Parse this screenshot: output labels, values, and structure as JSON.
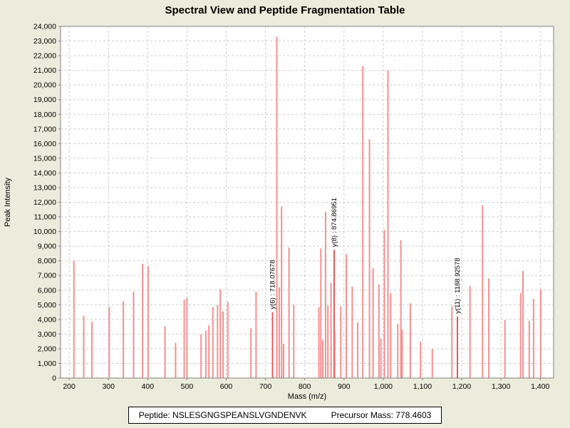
{
  "title": "Spectral View and Peptide Fragmentation Table",
  "footer": {
    "peptide": "Peptide: NSLESGNGSPEANSLVGNDENVK",
    "precursor": "Precursor Mass: 778.4603"
  },
  "chart_data": {
    "type": "bar",
    "title": "Spectral View and Peptide Fragmentation Table",
    "xlabel": "Mass (m/z)",
    "ylabel": "Peak Intensity",
    "xlim": [
      178,
      1434
    ],
    "ylim": [
      0,
      24000
    ],
    "x_ticks": [
      200,
      300,
      400,
      500,
      600,
      700,
      800,
      900,
      1000,
      1100,
      1200,
      1300,
      1400
    ],
    "y_tick_min": 0,
    "y_tick_max": 24000,
    "y_tick_step": 1000,
    "grid": true,
    "legend": "none",
    "colors": {
      "page_background": "#ECECDC",
      "plot_background": "#FFFFFF",
      "plot_border": "#808080",
      "gridline": "#CCCCCC",
      "peak": "#F29090",
      "peak_annotated": "#E05A5A",
      "text": "#000000"
    },
    "peaks": [
      {
        "mz": 212,
        "intensity": 8000
      },
      {
        "mz": 237,
        "intensity": 4250
      },
      {
        "mz": 258,
        "intensity": 3850
      },
      {
        "mz": 302,
        "intensity": 4850
      },
      {
        "mz": 338,
        "intensity": 5250
      },
      {
        "mz": 364,
        "intensity": 5900
      },
      {
        "mz": 387,
        "intensity": 7800
      },
      {
        "mz": 401,
        "intensity": 7650
      },
      {
        "mz": 444,
        "intensity": 3550
      },
      {
        "mz": 471,
        "intensity": 2400
      },
      {
        "mz": 493,
        "intensity": 5350
      },
      {
        "mz": 500,
        "intensity": 5450
      },
      {
        "mz": 536,
        "intensity": 3000
      },
      {
        "mz": 548,
        "intensity": 3250
      },
      {
        "mz": 556,
        "intensity": 3600
      },
      {
        "mz": 566,
        "intensity": 4850
      },
      {
        "mz": 578,
        "intensity": 5000
      },
      {
        "mz": 585,
        "intensity": 6050
      },
      {
        "mz": 592,
        "intensity": 4550
      },
      {
        "mz": 604,
        "intensity": 5200
      },
      {
        "mz": 663,
        "intensity": 3400
      },
      {
        "mz": 676,
        "intensity": 5900
      },
      {
        "mz": 718.08,
        "intensity": 4500,
        "annotated": true
      },
      {
        "mz": 729,
        "intensity": 23300
      },
      {
        "mz": 735,
        "intensity": 6200
      },
      {
        "mz": 741,
        "intensity": 11700
      },
      {
        "mz": 746,
        "intensity": 2350
      },
      {
        "mz": 760,
        "intensity": 8900
      },
      {
        "mz": 772,
        "intensity": 5000
      },
      {
        "mz": 836,
        "intensity": 4850
      },
      {
        "mz": 841,
        "intensity": 8850
      },
      {
        "mz": 846,
        "intensity": 2600
      },
      {
        "mz": 853,
        "intensity": 11350
      },
      {
        "mz": 859,
        "intensity": 4950
      },
      {
        "mz": 867,
        "intensity": 6500
      },
      {
        "mz": 874.87,
        "intensity": 8750,
        "annotated": true
      },
      {
        "mz": 877,
        "intensity": 3200
      },
      {
        "mz": 892,
        "intensity": 4900
      },
      {
        "mz": 906,
        "intensity": 8450
      },
      {
        "mz": 921,
        "intensity": 6250
      },
      {
        "mz": 935,
        "intensity": 3800
      },
      {
        "mz": 948,
        "intensity": 21300
      },
      {
        "mz": 965,
        "intensity": 16300
      },
      {
        "mz": 974,
        "intensity": 7500
      },
      {
        "mz": 989,
        "intensity": 6400
      },
      {
        "mz": 994,
        "intensity": 2700
      },
      {
        "mz": 1003,
        "intensity": 10100
      },
      {
        "mz": 1012,
        "intensity": 21000
      },
      {
        "mz": 1019,
        "intensity": 5800
      },
      {
        "mz": 1037,
        "intensity": 3700
      },
      {
        "mz": 1045,
        "intensity": 9400
      },
      {
        "mz": 1048,
        "intensity": 3300
      },
      {
        "mz": 1069,
        "intensity": 5100
      },
      {
        "mz": 1095,
        "intensity": 2500
      },
      {
        "mz": 1125,
        "intensity": 2000
      },
      {
        "mz": 1175,
        "intensity": 4900
      },
      {
        "mz": 1188.93,
        "intensity": 4200,
        "annotated": true
      },
      {
        "mz": 1221,
        "intensity": 6300
      },
      {
        "mz": 1253,
        "intensity": 11800
      },
      {
        "mz": 1269,
        "intensity": 6800
      },
      {
        "mz": 1310,
        "intensity": 3950
      },
      {
        "mz": 1350,
        "intensity": 5800
      },
      {
        "mz": 1356,
        "intensity": 7300
      },
      {
        "mz": 1372,
        "intensity": 3900
      },
      {
        "mz": 1383,
        "intensity": 5400
      },
      {
        "mz": 1401,
        "intensity": 6050
      }
    ],
    "annotations": [
      {
        "label": "y(6) : 718.07678",
        "mz": 718.08
      },
      {
        "label": "y(8) : 874.86951",
        "mz": 874.87
      },
      {
        "label": "y(11) : 1188.92578",
        "mz": 1188.93
      }
    ]
  }
}
